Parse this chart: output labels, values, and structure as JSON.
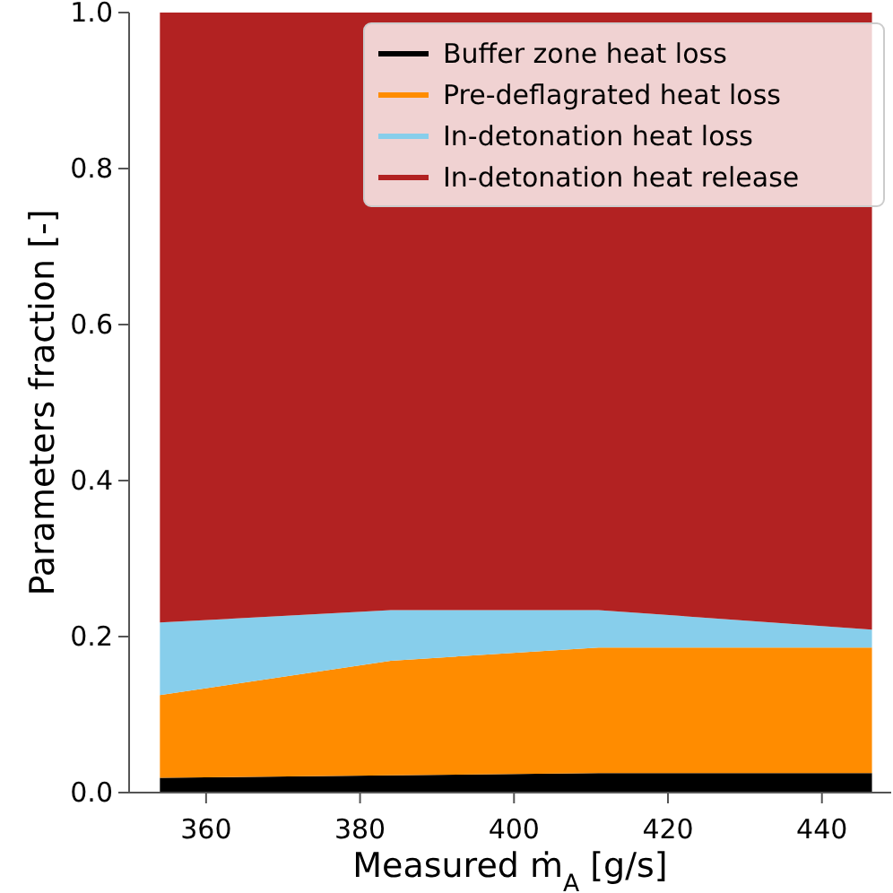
{
  "chart_data": {
    "type": "area",
    "stacked": true,
    "xlabel": "Measured ṁ$_{A}$ [g/s]",
    "ylabel": "Parameters fraction [-]",
    "x": [
      354,
      384,
      411,
      446.5
    ],
    "series": [
      {
        "name": "Buffer zone heat loss",
        "color": "#000000",
        "values": [
          0.019,
          0.022,
          0.025,
          0.025
        ]
      },
      {
        "name": "Pre-deflagrated heat loss",
        "color": "#ff8c00",
        "values": [
          0.106,
          0.147,
          0.161,
          0.161
        ]
      },
      {
        "name": "In-detonation heat loss",
        "color": "#87ceeb",
        "values": [
          0.093,
          0.065,
          0.048,
          0.023
        ]
      },
      {
        "name": "In-detonation heat release",
        "color": "#b22222",
        "values": [
          0.782,
          0.766,
          0.766,
          0.791
        ]
      }
    ],
    "xlim": [
      350,
      449
    ],
    "xticks": [
      360,
      380,
      400,
      420,
      440
    ],
    "ylim": [
      0,
      1
    ],
    "yticks": [
      {
        "value": 0,
        "label": "0.0"
      },
      {
        "value": 0.2,
        "label": "0.2"
      },
      {
        "value": 0.4,
        "label": "0.4"
      },
      {
        "value": 0.6,
        "label": "0.6"
      },
      {
        "value": 0.8,
        "label": "0.8"
      },
      {
        "value": 1,
        "label": "1.0"
      }
    ],
    "legend": "top right"
  }
}
